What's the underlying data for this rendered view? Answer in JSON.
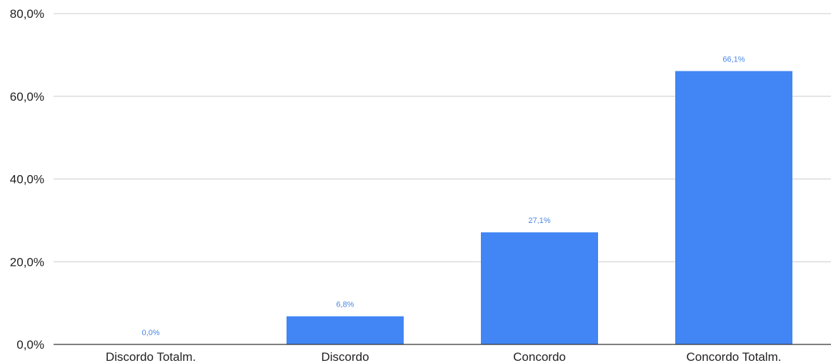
{
  "chart_data": {
    "type": "bar",
    "categories": [
      "Discordo Totalm.",
      "Discordo",
      "Concordo",
      "Concordo Totalm."
    ],
    "values": [
      0.0,
      6.8,
      27.1,
      66.1
    ],
    "data_labels": [
      "0,0%",
      "6,8%",
      "27,1%",
      "66,1%"
    ],
    "y_ticks": [
      0,
      20,
      40,
      60,
      80
    ],
    "y_tick_labels": [
      "0,0%",
      "20,0%",
      "40,0%",
      "60,0%",
      "80,0%"
    ],
    "ylim": [
      0,
      80
    ],
    "grid": true,
    "legend": "none",
    "colors": {
      "bar": "#4285f4",
      "data_label": "#4a86e8",
      "grid": "#cccccc",
      "axis": "#333333"
    }
  }
}
